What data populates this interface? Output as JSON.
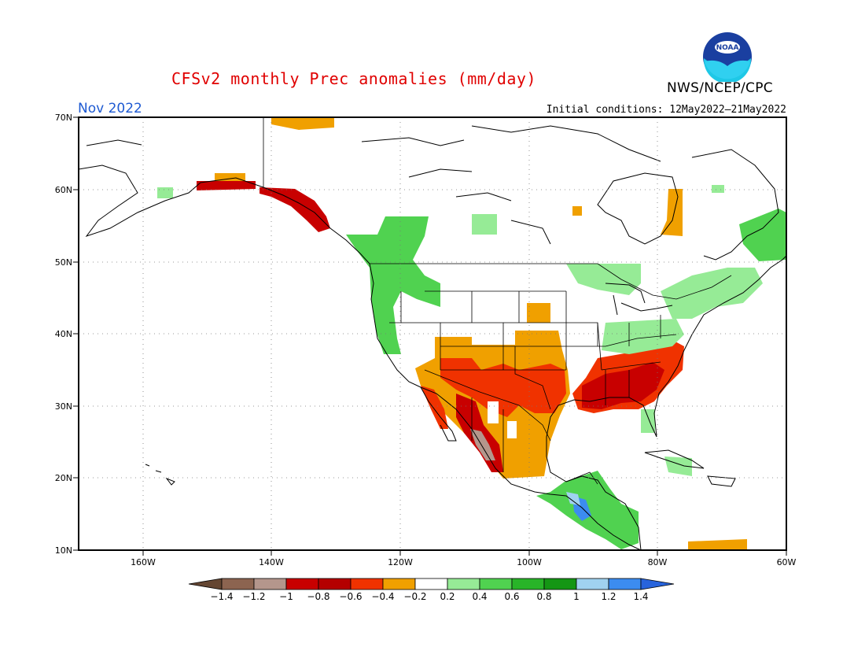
{
  "header": {
    "title": "CFSv2 monthly Prec anomalies (mm/day)",
    "agency": "NWS/NCEP/CPC",
    "month": "Nov 2022",
    "initial_conditions": "Initial conditions: 12May2022–21May2022",
    "logo_text": "NOAA"
  },
  "map": {
    "lat_labels": [
      "70N",
      "60N",
      "50N",
      "40N",
      "30N",
      "20N",
      "10N"
    ],
    "lon_labels": [
      "160W",
      "140W",
      "120W",
      "100W",
      "80W",
      "60W"
    ]
  },
  "colorbar": {
    "tick_labels": [
      "-1.4",
      "-1.2",
      "-1",
      "-0.8",
      "-0.6",
      "-0.4",
      "-0.2",
      "0.2",
      "0.4",
      "0.6",
      "0.8",
      "1",
      "1.2",
      "1.4"
    ],
    "colors": [
      "#8c6450",
      "#b4968c",
      "#c80000",
      "#b40000",
      "#f03200",
      "#f0a000",
      "#ffffff",
      "#96eb96",
      "#50d250",
      "#28b428",
      "#149614",
      "#a0d2f0",
      "#3c8cf0"
    ],
    "end_low_color": "#644632",
    "end_high_color": "#2864dc"
  },
  "colors": {
    "title": "#e00000",
    "month": "#1e5ad2"
  }
}
